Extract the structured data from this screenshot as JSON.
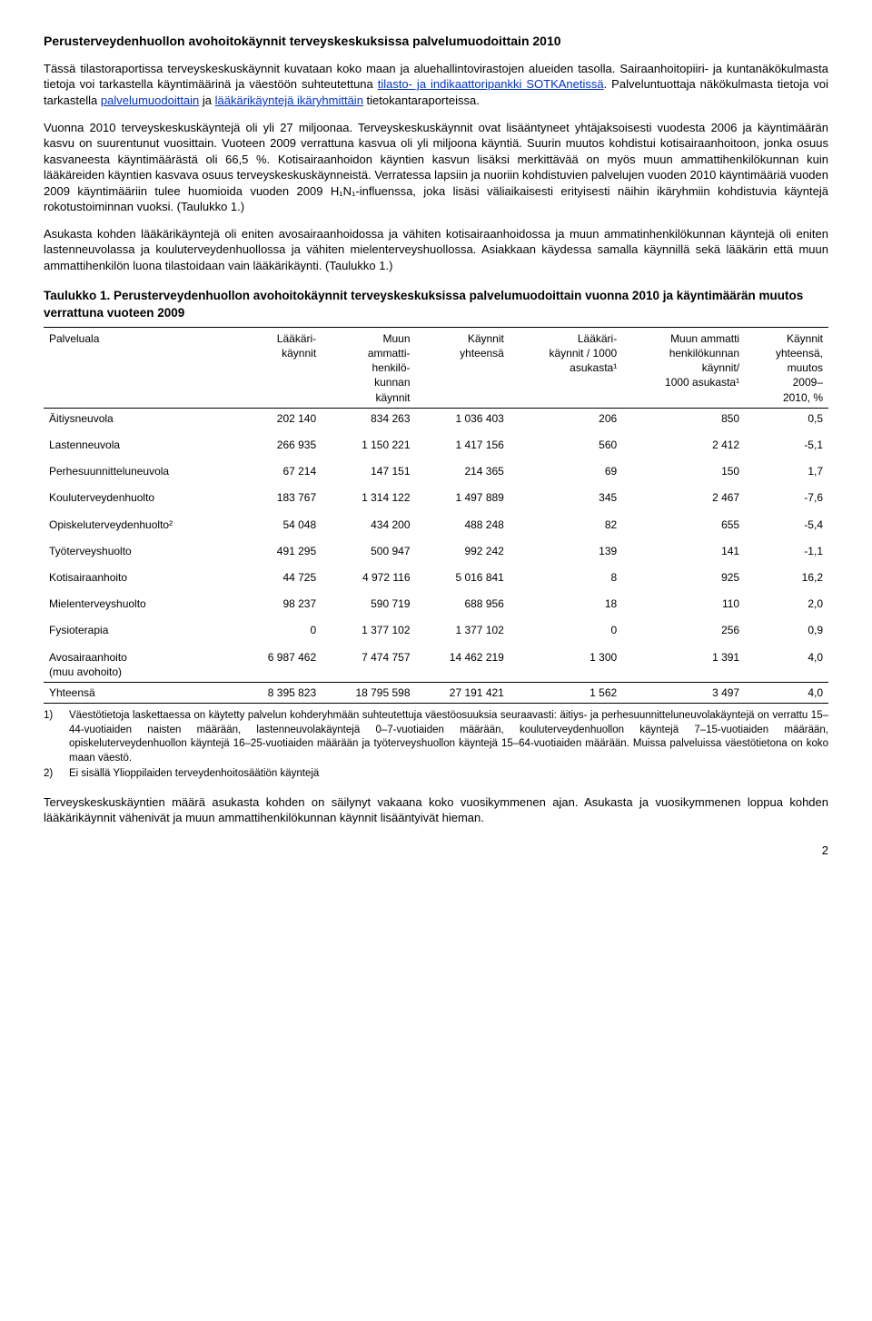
{
  "title": "Perusterveydenhuollon avohoitokäynnit terveyskeskuksissa palvelumuodoittain 2010",
  "para1_a": "Tässä tilastoraportissa terveyskeskuskäynnit kuvataan koko maan ja aluehallintovirastojen alueiden tasolla. Sairaanhoitopiiri- ja kuntanäkökulmasta tietoja voi tarkastella käyntimäärinä ja väestöön suhteutettuna ",
  "link1": "tilasto- ja indikaattoripankki SOTKAnetissä",
  "para1_b": ". Palveluntuottaja näkökulmasta tietoja voi tarkastella ",
  "link2": "palvelumuodoittain",
  "para1_c": " ja ",
  "link3": "lääkärikäyntejä ikäryhmittäin",
  "para1_d": " tietokantaraporteissa.",
  "para2": "Vuonna 2010 terveyskeskuskäyntejä oli yli 27 miljoonaa. Terveyskeskuskäynnit ovat lisääntyneet yhtäjaksoisesti vuodesta 2006 ja käyntimäärän kasvu on suurentunut vuosittain. Vuoteen 2009 verrattuna kasvua oli yli miljoona käyntiä. Suurin muutos kohdistui kotisairaanhoitoon, jonka osuus kasvaneesta käyntimäärästä oli 66,5 %. Kotisairaanhoidon käyntien kasvun lisäksi merkittävää on myös muun ammattihenkilökunnan kuin lääkäreiden käyntien kasvava osuus terveyskeskuskäynneistä. Verratessa lapsiin ja nuoriin kohdistuvien palvelujen vuoden 2010 käyntimääriä vuoden 2009 käyntimääriin tulee huomioida vuoden 2009 H₁N₁-influenssa, joka lisäsi väliaikaisesti erityisesti näihin ikäryhmiin kohdistuvia käyntejä rokotustoiminnan vuoksi. (Taulukko 1.)",
  "para3": "Asukasta kohden lääkärikäyntejä oli eniten avosairaanhoidossa ja vähiten kotisairaanhoidossa ja muun ammatinhenkilökunnan käyntejä oli eniten lastenneuvolassa ja kouluterveydenhuollossa ja vähiten mielenterveyshuollossa. Asiakkaan käydessa samalla käynnillä sekä lääkärin että muun ammattihenkilön luona tilastoidaan vain lääkärikäynti. (Taulukko 1.)",
  "table_title": "Taulukko 1. Perusterveydenhuollon avohoitokäynnit terveyskeskuksissa palvelumuodoittain vuonna 2010 ja käyntimäärän muutos verrattuna vuoteen 2009",
  "columns": {
    "c0": "Palveluala",
    "c1": "Lääkäri-\nkäynnit",
    "c2": "Muun\nammatti-\nhenkilö-\nkunnan\nkäynnit",
    "c3": "Käynnit\nyhteensä",
    "c4": "Lääkäri-\nkäynnit / 1000\nasukasta¹",
    "c5": "Muun ammatti\nhenkilökunnan\nkäynnit/\n1000 asukasta¹",
    "c6": "Käynnit\nyhteensä,\nmuutos\n2009–\n2010, %"
  },
  "rows": [
    {
      "n": "Äitiysneuvola",
      "v": [
        "202 140",
        "834 263",
        "1 036 403",
        "206",
        "850",
        "0,5"
      ],
      "spaced": false
    },
    {
      "n": "Lastenneuvola",
      "v": [
        "266 935",
        "1 150 221",
        "1 417 156",
        "560",
        "2 412",
        "-5,1"
      ],
      "spaced": true
    },
    {
      "n": "Perhesuunnitteluneuvola",
      "v": [
        "67 214",
        "147 151",
        "214 365",
        "69",
        "150",
        "1,7"
      ],
      "spaced": true
    },
    {
      "n": "Kouluterveydenhuolto",
      "v": [
        "183 767",
        "1 314 122",
        "1 497 889",
        "345",
        "2 467",
        "-7,6"
      ],
      "spaced": true
    },
    {
      "n": "Opiskeluterveydenhuolto²",
      "v": [
        "54 048",
        "434 200",
        "488 248",
        "82",
        "655",
        "-5,4"
      ],
      "spaced": true
    },
    {
      "n": "Työterveyshuolto",
      "v": [
        "491 295",
        "500 947",
        "992 242",
        "139",
        "141",
        "-1,1"
      ],
      "spaced": true
    },
    {
      "n": "Kotisairaanhoito",
      "v": [
        "44 725",
        "4 972 116",
        "5 016 841",
        "8",
        "925",
        "16,2"
      ],
      "spaced": true
    },
    {
      "n": "Mielenterveyshuolto",
      "v": [
        "98 237",
        "590 719",
        "688 956",
        "18",
        "110",
        "2,0"
      ],
      "spaced": true
    },
    {
      "n": "Fysioterapia",
      "v": [
        "0",
        "1 377 102",
        "1 377 102",
        "0",
        "256",
        "0,9"
      ],
      "spaced": true
    },
    {
      "n": "Avosairaanhoito\n(muu avohoito)",
      "v": [
        "6 987 462",
        "7 474 757",
        "14 462 219",
        "1 300",
        "1 391",
        "4,0"
      ],
      "spaced": true
    }
  ],
  "sum_row": {
    "n": "Yhteensä",
    "v": [
      "8 395 823",
      "18 795 598",
      "27 191 421",
      "1 562",
      "3 497",
      "4,0"
    ]
  },
  "fn1": "Väestötietoja laskettaessa on käytetty palvelun kohderyhmään suhteutettuja väestöosuuksia seuraavasti: äitiys- ja perhesuunnitteluneuvolakäyntejä on verrattu 15–44-vuotiaiden naisten määrään, lastenneuvolakäyntejä 0–7-vuotiaiden määrään, kouluterveydenhuollon käyntejä 7–15-vuotiaiden määrään, opiskeluterveydenhuollon käyntejä 16–25-vuotiaiden määrään ja työterveyshuollon käyntejä 15–64-vuotiaiden määrään. Muissa palveluissa väestötietona on koko maan väestö.",
  "fn2": "Ei sisällä Ylioppilaiden terveydenhoitosäätiön käyntejä",
  "para4": "Terveyskeskuskäyntien määrä asukasta kohden on säilynyt vakaana koko vuosikymmenen ajan. Asukasta ja vuosikymmenen loppua kohden lääkärikäynnit vähenivät ja muun ammattihenkilökunnan käynnit lisääntyivät hieman.",
  "page_number": "2"
}
